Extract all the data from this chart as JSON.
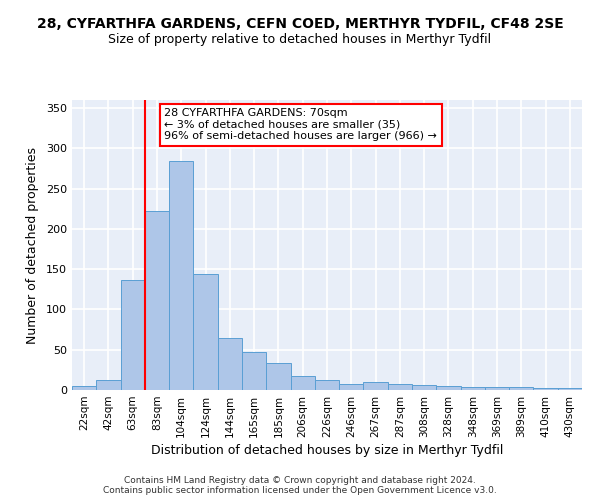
{
  "title": "28, CYFARTHFA GARDENS, CEFN COED, MERTHYR TYDFIL, CF48 2SE",
  "subtitle": "Size of property relative to detached houses in Merthyr Tydfil",
  "xlabel": "Distribution of detached houses by size in Merthyr Tydfil",
  "ylabel": "Number of detached properties",
  "categories": [
    "22sqm",
    "42sqm",
    "63sqm",
    "83sqm",
    "104sqm",
    "124sqm",
    "144sqm",
    "165sqm",
    "185sqm",
    "206sqm",
    "226sqm",
    "246sqm",
    "267sqm",
    "287sqm",
    "308sqm",
    "328sqm",
    "348sqm",
    "369sqm",
    "389sqm",
    "410sqm",
    "430sqm"
  ],
  "values": [
    5,
    13,
    137,
    222,
    284,
    144,
    65,
    47,
    33,
    17,
    13,
    8,
    10,
    7,
    6,
    5,
    4,
    4,
    4,
    3,
    2
  ],
  "bar_color": "#aec6e8",
  "bar_edge_color": "#5a9fd4",
  "bg_color": "#e8eef8",
  "grid_color": "#ffffff",
  "vline_x": 2.5,
  "vline_color": "red",
  "annotation_text": "28 CYFARTHFA GARDENS: 70sqm\n← 3% of detached houses are smaller (35)\n96% of semi-detached houses are larger (966) →",
  "annotation_box_color": "white",
  "annotation_box_edge": "red",
  "ylim": [
    0,
    360
  ],
  "yticks": [
    0,
    50,
    100,
    150,
    200,
    250,
    300,
    350
  ],
  "footer": "Contains HM Land Registry data © Crown copyright and database right 2024.\nContains public sector information licensed under the Open Government Licence v3.0.",
  "title_fontsize": 10,
  "subtitle_fontsize": 9,
  "xlabel_fontsize": 9,
  "ylabel_fontsize": 9,
  "annotation_fontsize": 8,
  "tick_fontsize": 7.5,
  "footer_fontsize": 6.5
}
